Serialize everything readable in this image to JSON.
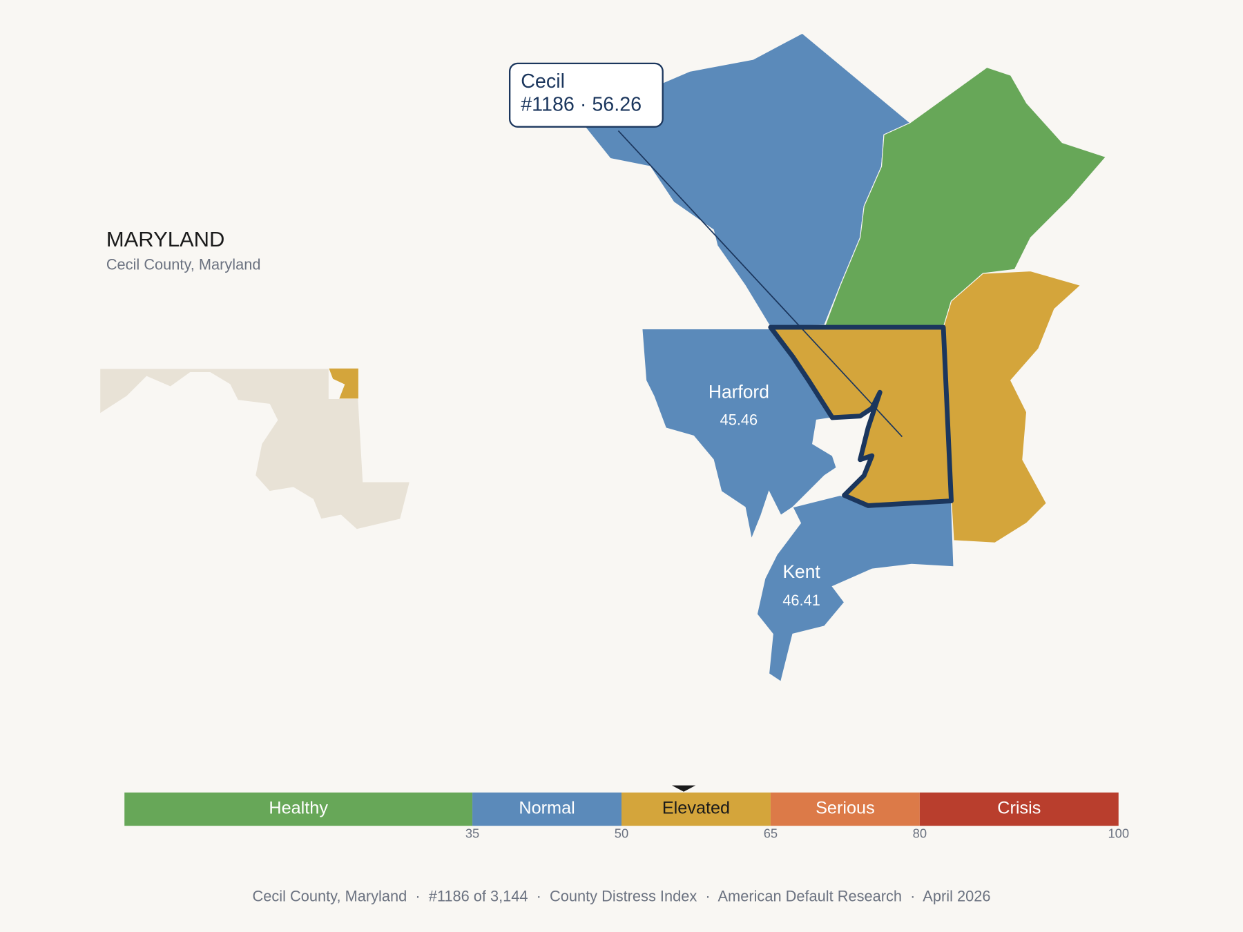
{
  "header": {
    "title": "MARYLAND",
    "subtitle": "Cecil County, Maryland"
  },
  "callout": {
    "name": "Cecil",
    "detail": "#1186 · 56.26"
  },
  "counties": [
    {
      "name": "Harford",
      "value": 45.46
    },
    {
      "name": "Kent",
      "value": 46.41
    }
  ],
  "scale": {
    "xlim": [
      0,
      100
    ],
    "xticks": [
      35,
      50,
      65,
      80,
      100
    ],
    "bands": [
      {
        "name": "Healthy",
        "color": "#67a758"
      },
      {
        "name": "Normal",
        "color": "#5b8aba"
      },
      {
        "name": "Elevated",
        "color": "#d4a53b"
      },
      {
        "name": "Serious",
        "color": "#dc7a48"
      },
      {
        "name": "Crisis",
        "color": "#b93e2d"
      }
    ],
    "marker": 56.26
  },
  "footer": "Cecil County, Maryland  ·  #1186 of 3,144  ·  County Distress Index  ·  American Default Research  ·  April 2026"
}
